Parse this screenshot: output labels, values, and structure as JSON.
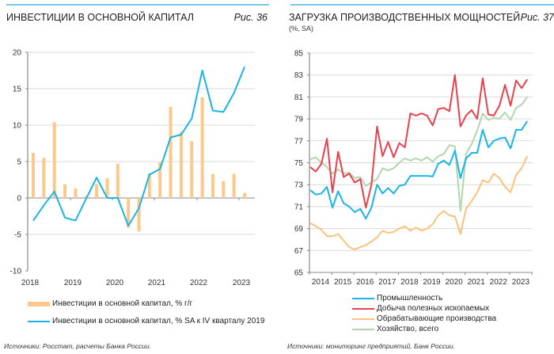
{
  "charts": [
    {
      "title": "ИНВЕСТИЦИИ В ОСНОВНОЙ КАПИТАЛ",
      "figure_label": "Рис. 36",
      "source": "Источники: Росстат, расчеты Банка России.",
      "legend": [
        {
          "label": "Инвестиции в основной капитал, % г/г",
          "color": "#fcc98a",
          "kind": "bar"
        },
        {
          "label": "Инвестиции в основной капитал, % SA к IV кварталу 2019",
          "color": "#1ab4e8",
          "kind": "line"
        }
      ]
    },
    {
      "title": "ЗАГРУЗКА ПРОИЗВОДСТВЕННЫХ МОЩНОСТЕЙ",
      "subtitle": "(%, SA)",
      "figure_label": "Рис. 37",
      "source": "Источники: мониторинг предприятий, Банк России.",
      "legend": [
        {
          "label": "Промышленность",
          "color": "#1ab4e8"
        },
        {
          "label": "Добыча полезных ископаемых",
          "color": "#e8414e"
        },
        {
          "label": "Обрабатывающие производства",
          "color": "#fcc27a"
        },
        {
          "label": "Хозяйство, всего",
          "color": "#b2d6ae"
        }
      ]
    }
  ],
  "chart_data": [
    {
      "type": "bar",
      "title": "ИНВЕСТИЦИИ В ОСНОВНОЙ КАПИТАЛ",
      "xlabel": "",
      "ylabel": "",
      "ylim": [
        -10,
        20
      ],
      "yticks": [
        "20",
        "15",
        "10",
        "5",
        "0",
        "-5",
        "-10"
      ],
      "ytick_values": [
        20,
        15,
        10,
        5,
        0,
        -5,
        -10
      ],
      "xtick_labels": [
        "2018",
        "2019",
        "2020",
        "2021",
        "2022",
        "2023"
      ],
      "grid": true,
      "legend_position": "bottom",
      "categories": [
        "2018Q1",
        "2018Q2",
        "2018Q3",
        "2018Q4",
        "2019Q1",
        "2019Q2",
        "2019Q3",
        "2019Q4",
        "2020Q1",
        "2020Q2",
        "2020Q3",
        "2020Q4",
        "2021Q1",
        "2021Q2",
        "2021Q3",
        "2021Q4",
        "2022Q1",
        "2022Q2",
        "2022Q3",
        "2022Q4",
        "2023Q1"
      ],
      "series": [
        {
          "name": "Инвестиции в основной капитал, % г/г",
          "type": "bar",
          "values": [
            6.2,
            5.5,
            10.4,
            1.9,
            1.3,
            0.3,
            1.9,
            2.7,
            4.7,
            -4.1,
            -4.6,
            3.4,
            4.9,
            12.5,
            9.1,
            7.8,
            13.8,
            3.3,
            2.3,
            3.3,
            0.7
          ]
        },
        {
          "name": "Инвестиции в основной капитал, % SA к IV кварталу 2019",
          "type": "line",
          "values": [
            -3.1,
            -1.0,
            0.9,
            -2.7,
            -3.1,
            -0.1,
            2.8,
            0.0,
            0.0,
            -3.8,
            -1.4,
            3.2,
            4.0,
            8.3,
            8.7,
            10.9,
            17.5,
            12.0,
            11.8,
            14.4,
            18.0
          ]
        }
      ]
    },
    {
      "type": "line",
      "title": "ЗАГРУЗКА ПРОИЗВОДСТВЕННЫХ МОЩНОСТЕЙ",
      "subtitle": "(%, SA)",
      "xlabel": "",
      "ylabel": "",
      "ylim": [
        65,
        85
      ],
      "yticks": [
        "85",
        "83",
        "81",
        "79",
        "77",
        "75",
        "73",
        "71",
        "69",
        "67",
        "65"
      ],
      "ytick_values": [
        85,
        83,
        81,
        79,
        77,
        75,
        73,
        71,
        69,
        67,
        65
      ],
      "xtick_labels": [
        "2014",
        "2015",
        "2016",
        "2017",
        "2018",
        "2019",
        "2020",
        "2021",
        "2022",
        "2023"
      ],
      "grid": true,
      "legend_position": "bottom",
      "x_start": "2014Q1",
      "x_frequency": "quarterly",
      "series": [
        {
          "name": "Промышленность",
          "values": [
            72.5,
            72.1,
            72.2,
            72.8,
            70.9,
            72.4,
            71.3,
            71.0,
            70.5,
            70.8,
            69.9,
            70.9,
            73.0,
            72.2,
            72.7,
            72.2,
            72.9,
            73.0,
            73.8,
            73.8,
            73.8,
            73.8,
            73.75,
            74.9,
            75.2,
            74.8,
            76.1,
            73.6,
            75.4,
            75.9,
            75.9,
            78.0,
            76.4,
            77.0,
            77.2,
            77.3,
            76.3,
            78.0,
            78.0,
            78.8
          ]
        },
        {
          "name": "Добыча полезных ископаемых",
          "values": [
            74.6,
            74.2,
            74.9,
            77.2,
            72.3,
            76.0,
            73.7,
            74.0,
            73.2,
            73.5,
            70.9,
            73.0,
            78.3,
            75.6,
            76.9,
            75.5,
            76.8,
            76.4,
            79.5,
            79.3,
            79.5,
            79.3,
            78.4,
            79.9,
            80.0,
            79.7,
            83.0,
            78.3,
            79.3,
            79.8,
            79.0,
            82.7,
            79.4,
            79.3,
            80.2,
            82.1,
            80.2,
            82.5,
            81.8,
            82.6
          ]
        },
        {
          "name": "Обрабатывающие производства",
          "values": [
            69.5,
            69.2,
            68.9,
            68.3,
            68.3,
            68.5,
            67.9,
            67.3,
            67.1,
            67.3,
            67.5,
            67.8,
            68.2,
            68.8,
            68.6,
            68.7,
            69.0,
            69.2,
            68.8,
            69.1,
            68.8,
            69.0,
            69.4,
            70.2,
            70.6,
            70.2,
            70.1,
            68.5,
            70.8,
            71.5,
            72.3,
            73.4,
            73.2,
            74.0,
            73.6,
            72.8,
            72.3,
            73.9,
            74.5,
            75.6
          ]
        },
        {
          "name": "Хозяйство, всего",
          "values": [
            75.3,
            75.5,
            75.0,
            74.6,
            74.0,
            74.4,
            74.0,
            74.1,
            73.6,
            73.7,
            72.9,
            73.2,
            73.5,
            74.5,
            74.3,
            74.5,
            75.0,
            75.4,
            75.2,
            75.4,
            75.2,
            75.5,
            75.1,
            75.6,
            75.8,
            76.6,
            76.5,
            70.6,
            75.8,
            76.7,
            77.9,
            79.5,
            78.9,
            79.1,
            79.0,
            79.6,
            78.9,
            80.0,
            80.3,
            81.0
          ]
        }
      ]
    }
  ]
}
